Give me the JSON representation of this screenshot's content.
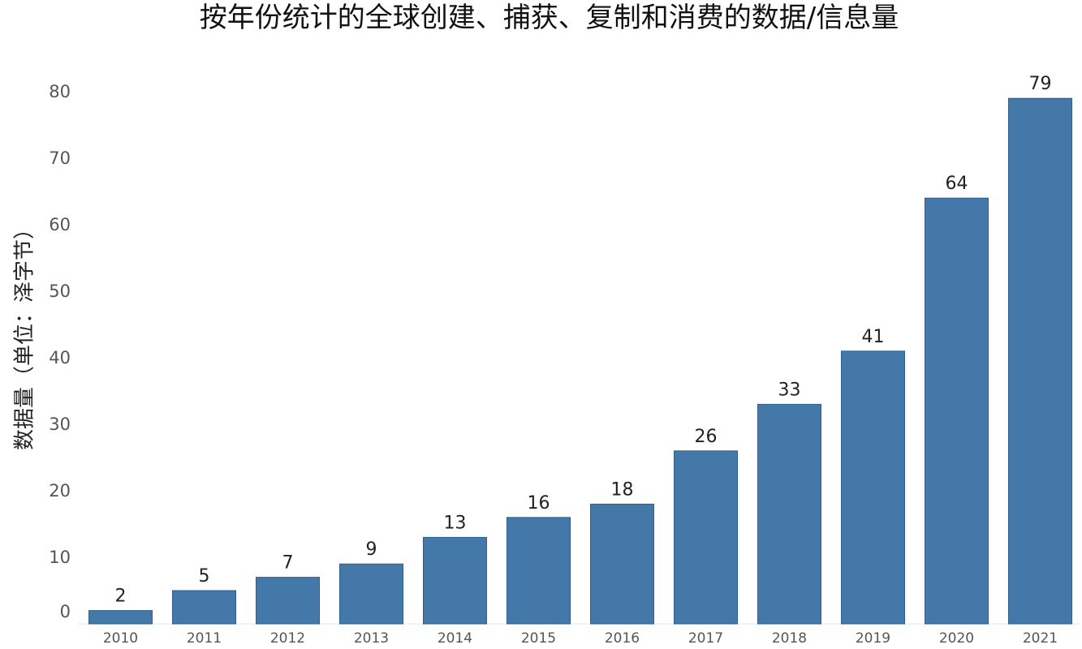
{
  "chart_data": {
    "type": "bar",
    "title": "按年份统计的全球创建、捕获、复制和消费的数据/信息量",
    "xlabel": "",
    "ylabel": "数据量（单位：泽字节）",
    "categories": [
      "2010",
      "2011",
      "2012",
      "2013",
      "2014",
      "2015",
      "2016",
      "2017",
      "2018",
      "2019",
      "2020",
      "2021"
    ],
    "values": [
      2,
      5,
      7,
      9,
      13,
      16,
      18,
      26,
      33,
      41,
      64,
      79
    ],
    "data_labels": [
      "2",
      "5",
      "7",
      "9",
      "13",
      "16",
      "18",
      "26",
      "33",
      "41",
      "64",
      "79"
    ],
    "y_ticks": [
      "0",
      "10",
      "20",
      "30",
      "40",
      "50",
      "60",
      "70",
      "80"
    ],
    "ylim": [
      0,
      86
    ],
    "grid": false,
    "legend": "none",
    "bar_color": "#4478a8"
  }
}
